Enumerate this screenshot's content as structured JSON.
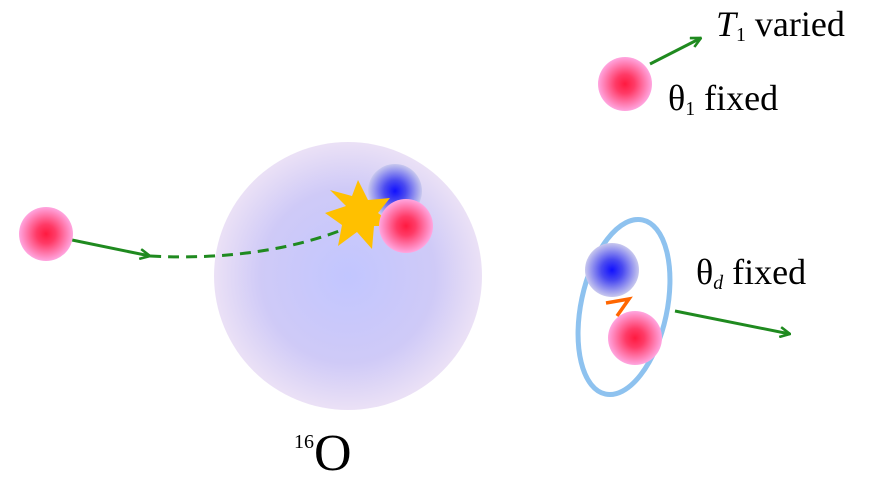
{
  "labels": {
    "t1_symbol": "T",
    "t1_sub": "1",
    "t1_text": "varied",
    "theta1_symbol": "θ",
    "theta1_sub": "1",
    "theta1_text": "fixed",
    "thetad_symbol": "θ",
    "thetad_sub": "d",
    "thetad_text": "fixed",
    "nucleus_mass": "16",
    "nucleus_symbol": "O"
  },
  "colors": {
    "proton": "#ff2a55",
    "proton_glow": "#ff99dd",
    "neutron": "#1a1aff",
    "neutron_glow": "#b0b0ee",
    "nucleus_center": "#c4c8ff",
    "nucleus_edge": "#e6dcf6",
    "arrow": "#1f8a1f",
    "deuteron_outline": "#8ec2ef",
    "bond": "#ff6600",
    "burst": "#ffc000"
  },
  "icons": [
    "burst-icon",
    "proton-icon",
    "neutron-icon"
  ]
}
